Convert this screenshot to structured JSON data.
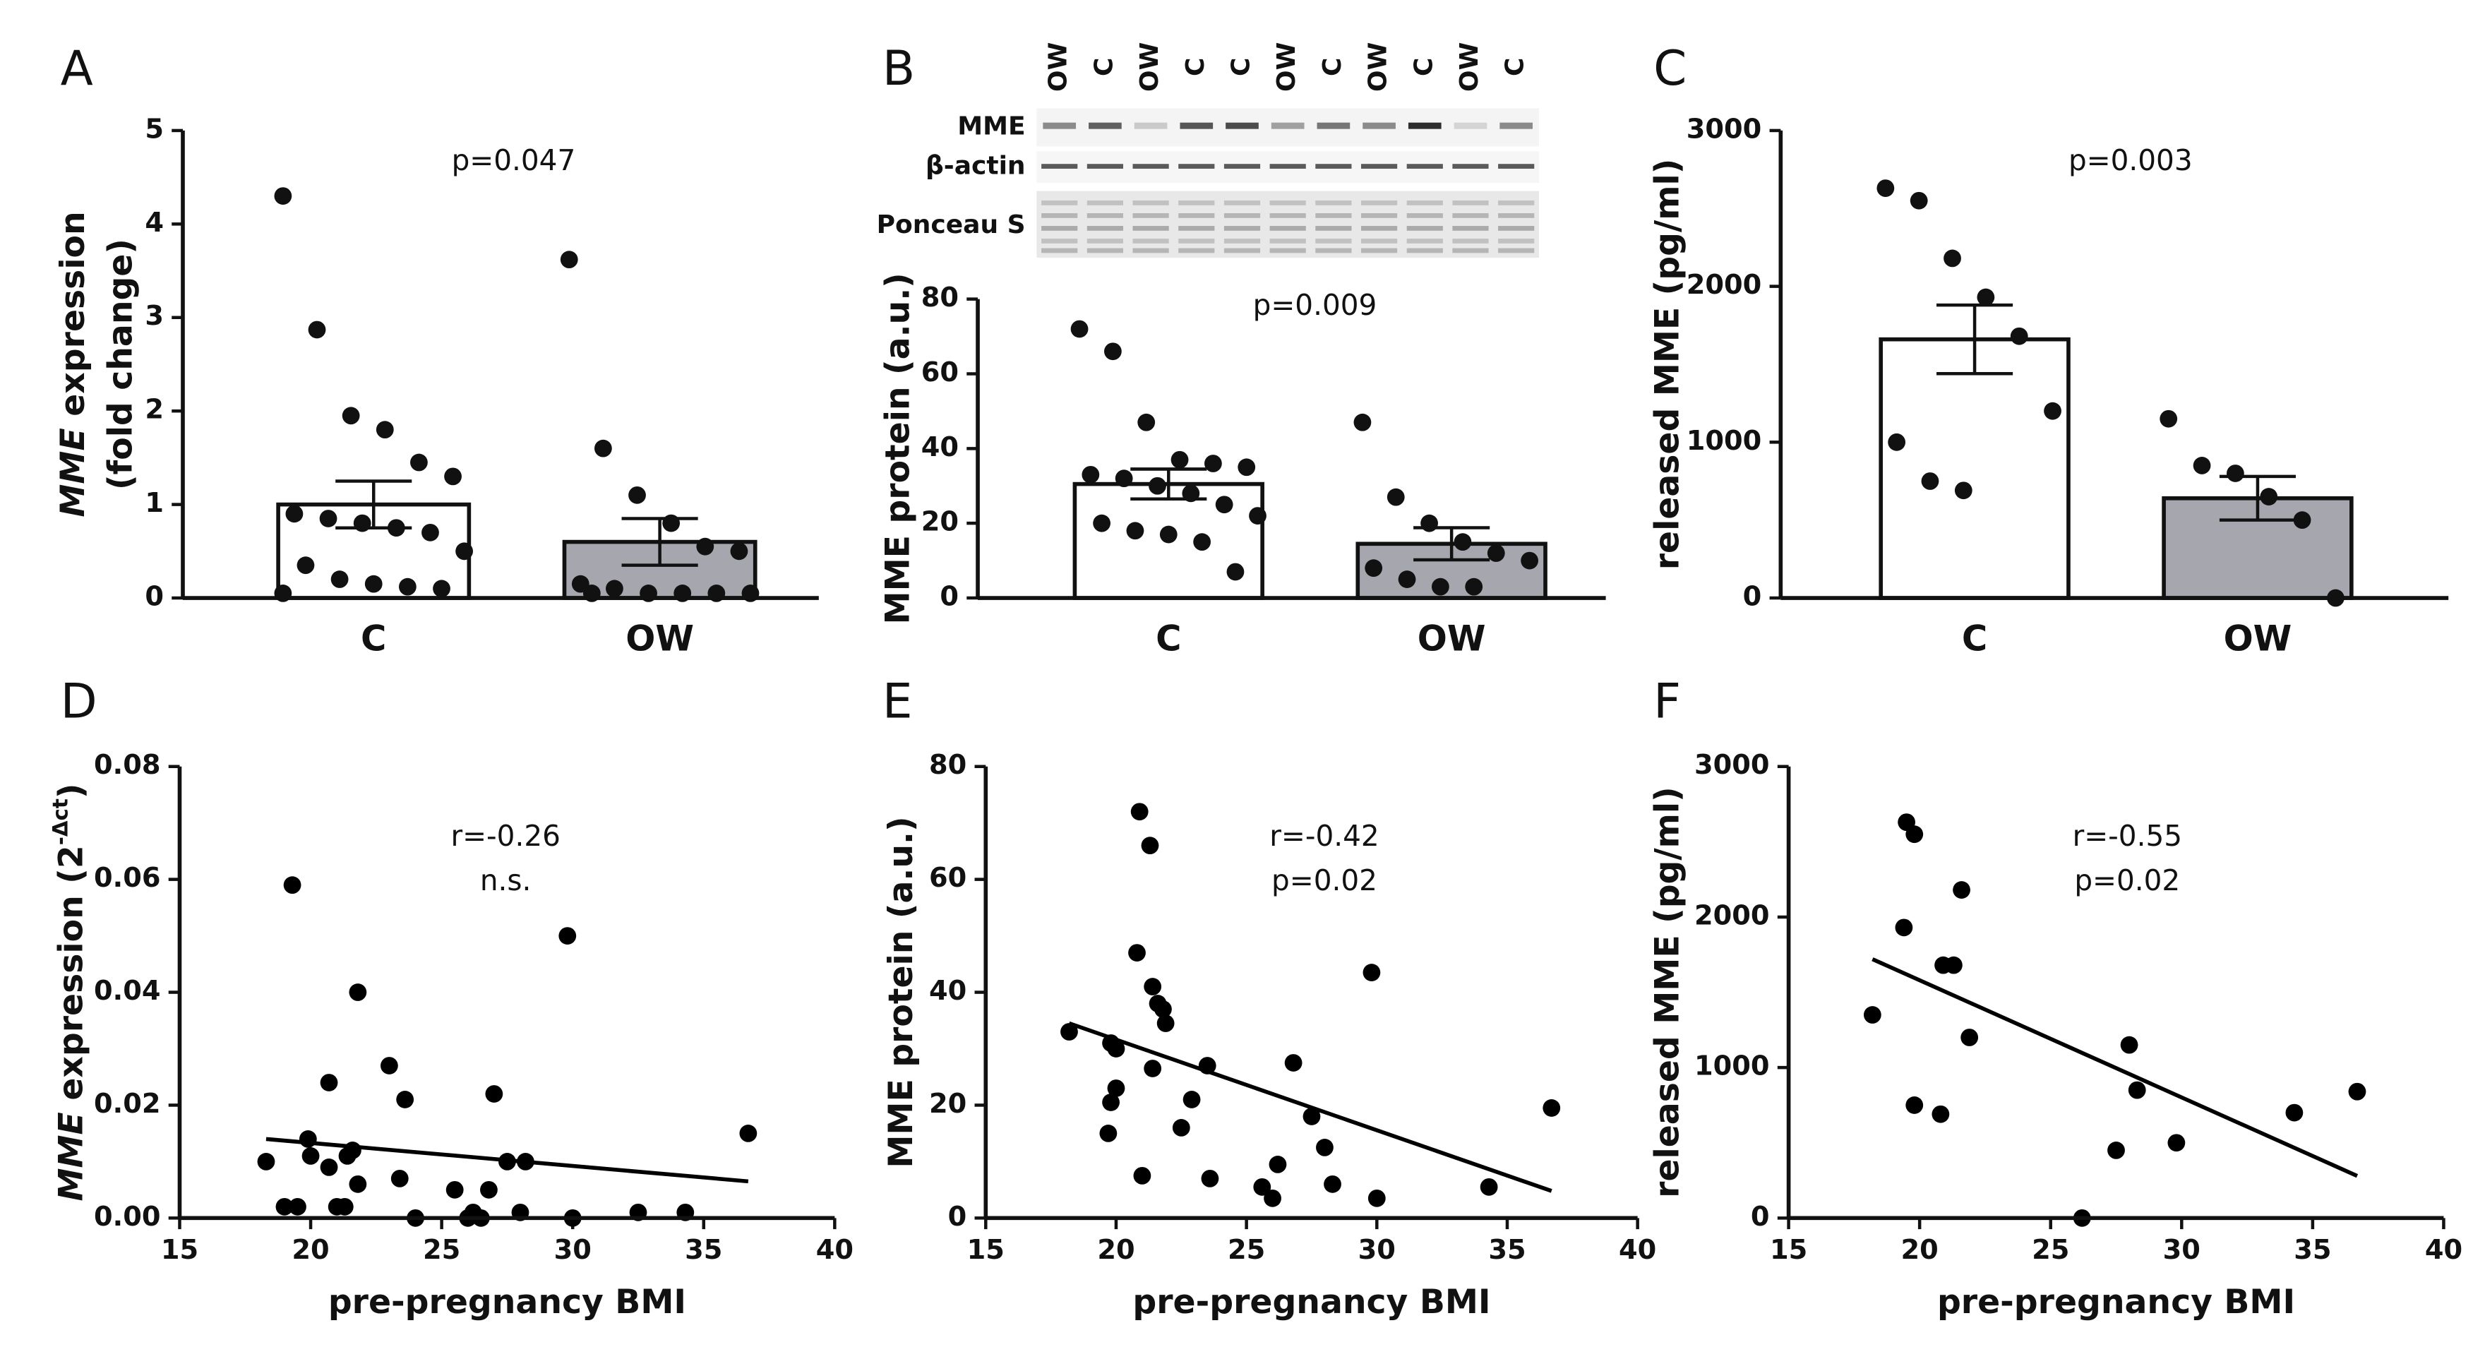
{
  "chart_data": [
    {
      "type": "bar",
      "panel": "A",
      "categories": [
        "C",
        "OW"
      ],
      "values": [
        1.0,
        0.6
      ],
      "errors": [
        0.25,
        0.25
      ],
      "colors": [
        "#ffffff",
        "#a6a6ae"
      ],
      "points": [
        [
          4.3,
          2.87,
          1.95,
          1.8,
          1.45,
          1.3,
          0.9,
          0.85,
          0.8,
          0.75,
          0.7,
          0.5,
          0.35,
          0.2,
          0.15,
          0.12,
          0.1,
          0.05
        ],
        [
          3.62,
          1.6,
          1.1,
          0.8,
          0.55,
          0.5,
          0.15,
          0.1,
          0.05,
          0.05,
          0.05,
          0.05,
          0.05
        ]
      ],
      "ylim": [
        0,
        5
      ],
      "yticks": [
        0,
        1,
        2,
        3,
        4,
        5
      ],
      "y_label": [
        [
          {
            "text": "MME",
            "style": "italic"
          },
          {
            "text": " expression"
          }
        ],
        [
          {
            "text": "(fold change)"
          }
        ]
      ],
      "annotations": [
        "p=0.047"
      ]
    },
    {
      "type": "bar",
      "panel": "B",
      "categories": [
        "C",
        "OW"
      ],
      "values": [
        30.5,
        14.5
      ],
      "errors": [
        4,
        4.3
      ],
      "colors": [
        "#ffffff",
        "#a6a6ae"
      ],
      "points": [
        [
          72,
          66,
          47,
          37,
          36,
          35,
          33,
          32,
          30,
          28,
          25,
          22,
          20,
          18,
          17,
          15,
          7
        ],
        [
          47,
          27,
          20,
          15,
          12,
          10,
          8,
          5,
          3,
          3
        ]
      ],
      "ylim": [
        0,
        80
      ],
      "yticks": [
        0,
        20,
        40,
        60,
        80
      ],
      "y_label": [
        [
          {
            "text": "MME protein (a.u.)"
          }
        ]
      ],
      "annotations": [
        "p=0.009"
      ]
    },
    {
      "type": "bar",
      "panel": "C",
      "categories": [
        "C",
        "OW"
      ],
      "values": [
        1660,
        640
      ],
      "errors": [
        220,
        140
      ],
      "colors": [
        "#ffffff",
        "#a6a6ae"
      ],
      "points": [
        [
          2630,
          2550,
          2180,
          1930,
          1680,
          1200,
          1000,
          750,
          690
        ],
        [
          1150,
          850,
          800,
          650,
          500,
          0
        ]
      ],
      "ylim": [
        0,
        3000
      ],
      "yticks": [
        0,
        1000,
        2000,
        3000
      ],
      "y_label": [
        [
          {
            "text": "released MME (pg/ml)"
          }
        ]
      ],
      "annotations": [
        "p=0.003"
      ]
    },
    {
      "type": "scatter",
      "panel": "D",
      "color": "#000000",
      "x": [
        19.3,
        29.8,
        21.8,
        23,
        20.7,
        23.6,
        27,
        36.7,
        19.9,
        21.6,
        21.4,
        20,
        18.3,
        20.7,
        28.2,
        27.5,
        23.4,
        21.8,
        25.5,
        26.8,
        19.5,
        19,
        21.3,
        21,
        24,
        26.2,
        26.5,
        28,
        30,
        32.5,
        34.3,
        26
      ],
      "y": [
        0.059,
        0.05,
        0.04,
        0.027,
        0.024,
        0.021,
        0.022,
        0.015,
        0.014,
        0.012,
        0.011,
        0.011,
        0.01,
        0.009,
        0.01,
        0.01,
        0.007,
        0.006,
        0.005,
        0.005,
        0.002,
        0.002,
        0.002,
        0.002,
        0,
        0.001,
        0,
        0.001,
        0,
        0.001,
        0.001,
        0
      ],
      "trend": {
        "x": [
          18.3,
          36.7
        ],
        "y": [
          0.014,
          0.0065
        ]
      },
      "xlim": [
        15,
        40
      ],
      "xticks": [
        15,
        20,
        25,
        30,
        35,
        40
      ],
      "ylim": [
        0,
        0.08
      ],
      "yticks": [
        {
          "value": 0,
          "label": "0.00"
        },
        {
          "value": 0.02,
          "label": "0.02"
        },
        {
          "value": 0.04,
          "label": "0.04"
        },
        {
          "value": 0.06,
          "label": "0.06"
        },
        {
          "value": 0.08,
          "label": "0.08"
        }
      ],
      "x_label": "pre-pregnancy BMI",
      "y_label": [
        [
          {
            "text": "MME",
            "style": "italic"
          },
          {
            "text": " expression (2"
          },
          {
            "text": "-Δct",
            "style": "sup"
          },
          {
            "text": ")"
          }
        ]
      ],
      "annotations": [
        "r=-0.26",
        "n.s."
      ]
    },
    {
      "type": "scatter",
      "panel": "E",
      "color": "#000000",
      "x": [
        20.9,
        21.3,
        20.8,
        29.8,
        21.4,
        21.6,
        21.8,
        21.9,
        18.2,
        19.8,
        20,
        26.8,
        23.5,
        21.4,
        20,
        22.9,
        19.8,
        36.7,
        27.5,
        22.5,
        19.7,
        28,
        26.2,
        21,
        23.6,
        28.3,
        25.6,
        34.3,
        26,
        30
      ],
      "y": [
        72,
        66,
        47,
        43.5,
        41,
        38,
        37,
        34.5,
        33,
        31,
        30,
        27.5,
        27,
        26.5,
        23,
        21,
        20.5,
        19.5,
        18,
        16,
        15,
        12.5,
        9.5,
        7.5,
        7,
        6,
        5.5,
        5.5,
        3.5,
        3.5
      ],
      "trend": {
        "x": [
          18.2,
          36.7
        ],
        "y": [
          34.5,
          4.8
        ]
      },
      "xlim": [
        15,
        40
      ],
      "xticks": [
        15,
        20,
        25,
        30,
        35,
        40
      ],
      "ylim": [
        0,
        80
      ],
      "yticks": [
        0,
        20,
        40,
        60,
        80
      ],
      "x_label": "pre-pregnancy BMI",
      "y_label": [
        [
          {
            "text": "MME protein  (a.u.)"
          }
        ]
      ],
      "annotations": [
        "r=-0.42",
        "p=0.02"
      ]
    },
    {
      "type": "scatter",
      "panel": "F",
      "color": "#000000",
      "x": [
        19.5,
        19.8,
        21.6,
        19.4,
        20.9,
        21.3,
        18.2,
        21.9,
        28,
        36.7,
        28.3,
        19.8,
        20.8,
        34.3,
        29.8,
        27.5,
        26.2
      ],
      "y": [
        2630,
        2550,
        2180,
        1930,
        1680,
        1680,
        1350,
        1200,
        1150,
        840,
        850,
        750,
        690,
        700,
        500,
        450,
        0
      ],
      "trend": {
        "x": [
          18.2,
          36.7
        ],
        "y": [
          1720,
          280
        ]
      },
      "xlim": [
        15,
        40
      ],
      "xticks": [
        15,
        20,
        25,
        30,
        35,
        40
      ],
      "ylim": [
        0,
        3000
      ],
      "yticks": [
        0,
        1000,
        2000,
        3000
      ],
      "x_label": "pre-pregnancy BMI",
      "y_label": [
        [
          {
            "text": "released MME (pg/ml)"
          }
        ]
      ],
      "annotations": [
        "r=-0.55",
        "p=0.02"
      ]
    }
  ],
  "blot": {
    "lanes": [
      "OW",
      "C",
      "OW",
      "C",
      "C",
      "OW",
      "C",
      "OW",
      "C",
      "OW",
      "C"
    ],
    "rows": [
      "MME",
      "β-actin",
      "Ponceau S"
    ]
  }
}
